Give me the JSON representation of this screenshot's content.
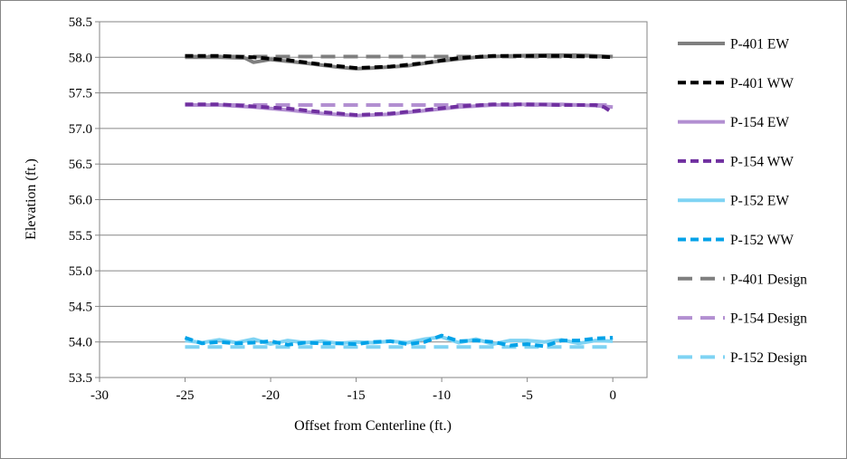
{
  "chart_data": {
    "type": "line",
    "title": "",
    "xlabel": "Offset from Centerline (ft.)",
    "ylabel": "Elevation (ft.)",
    "xlim": [
      -30,
      2
    ],
    "ylim": [
      53.5,
      58.5
    ],
    "xticks": [
      "-30",
      "-25",
      "-20",
      "-15",
      "-10",
      "-5",
      "0"
    ],
    "xtick_values": [
      -30,
      -25,
      -20,
      -15,
      -10,
      -5,
      0
    ],
    "yticks": [
      "53.5",
      "54.0",
      "54.5",
      "55.0",
      "55.5",
      "56.0",
      "56.5",
      "57.0",
      "57.5",
      "58.0",
      "58.5"
    ],
    "ytick_values": [
      53.5,
      54.0,
      54.5,
      55.0,
      55.5,
      56.0,
      56.5,
      57.0,
      57.5,
      58.0,
      58.5
    ],
    "grid": "horizontal major gridlines",
    "legend_placement": "right",
    "series": [
      {
        "name": "P-401 EW",
        "color": "#7f7f7f",
        "dash": "solid",
        "x": [
          -25,
          -23,
          -21.5,
          -21,
          -20,
          -18,
          -16,
          -15,
          -14,
          -12,
          -10,
          -8,
          -6,
          -4,
          -2,
          0
        ],
        "y": [
          58.0,
          58.0,
          57.99,
          57.93,
          57.97,
          57.92,
          57.86,
          57.84,
          57.85,
          57.88,
          57.95,
          58.0,
          58.02,
          58.03,
          58.03,
          58.01
        ]
      },
      {
        "name": "P-401 WW",
        "color": "#000000",
        "dash": "dash",
        "x": [
          -25,
          -23,
          -21,
          -19,
          -17,
          -15,
          -13,
          -11,
          -9,
          -7,
          -5,
          -3,
          -1,
          0
        ],
        "y": [
          58.02,
          58.02,
          58.0,
          57.96,
          57.9,
          57.85,
          57.87,
          57.92,
          57.99,
          58.02,
          58.02,
          58.02,
          58.01,
          58.0
        ]
      },
      {
        "name": "P-154 EW",
        "color": "#b28fd1",
        "dash": "solid",
        "x": [
          -25,
          -23,
          -21,
          -19,
          -17,
          -15,
          -13,
          -11,
          -9,
          -7,
          -5,
          -3,
          -1,
          0
        ],
        "y": [
          57.33,
          57.33,
          57.3,
          57.26,
          57.21,
          57.18,
          57.2,
          57.25,
          57.3,
          57.33,
          57.34,
          57.34,
          57.32,
          57.3
        ]
      },
      {
        "name": "P-154 WW",
        "color": "#7030a0",
        "dash": "dash",
        "x": [
          -25,
          -23,
          -21,
          -19,
          -17,
          -15,
          -13,
          -11,
          -9,
          -7,
          -5,
          -3,
          -1,
          -0.5,
          0
        ],
        "y": [
          57.34,
          57.34,
          57.31,
          57.28,
          57.23,
          57.19,
          57.21,
          57.26,
          57.31,
          57.34,
          57.34,
          57.33,
          57.33,
          57.3,
          57.22
        ]
      },
      {
        "name": "P-152 EW",
        "color": "#7fd3f3",
        "dash": "solid",
        "x": [
          -25,
          -24,
          -23,
          -22,
          -21,
          -20,
          -19,
          -18,
          -17,
          -16,
          -15,
          -14,
          -13,
          -12,
          -11,
          -10,
          -9,
          -8,
          -7,
          -6,
          -5,
          -4,
          -3,
          -2,
          -1,
          0
        ],
        "y": [
          54.02,
          53.99,
          54.03,
          53.99,
          54.04,
          53.97,
          54.02,
          53.99,
          54.01,
          53.98,
          54.0,
          53.99,
          54.01,
          53.99,
          54.04,
          54.07,
          53.99,
          54.04,
          53.97,
          54.02,
          54.02,
          54.0,
          54.03,
          53.98,
          54.02,
          54.01
        ]
      },
      {
        "name": "P-152 WW",
        "color": "#00a2e8",
        "dash": "dash",
        "x": [
          -25,
          -24,
          -23,
          -22,
          -21,
          -20,
          -19,
          -18,
          -17,
          -16,
          -15,
          -14,
          -13,
          -12,
          -11,
          -10,
          -9,
          -8,
          -7,
          -6,
          -5,
          -4,
          -3,
          -2,
          -1,
          0
        ],
        "y": [
          54.06,
          53.98,
          54.0,
          53.98,
          53.99,
          54.01,
          53.96,
          53.99,
          53.98,
          53.98,
          53.97,
          54.0,
          54.01,
          53.97,
          54.0,
          54.09,
          54.01,
          54.02,
          54.0,
          53.95,
          53.97,
          53.94,
          54.02,
          54.02,
          54.05,
          54.06
        ]
      },
      {
        "name": "P-401 Design",
        "color": "#7f7f7f",
        "dash": "longdash",
        "x": [
          -25,
          0
        ],
        "y": [
          58.01,
          58.01
        ]
      },
      {
        "name": "P-154 Design",
        "color": "#b28fd1",
        "dash": "longdash",
        "x": [
          -25,
          0
        ],
        "y": [
          57.33,
          57.33
        ]
      },
      {
        "name": "P-152 Design",
        "color": "#7fd3f3",
        "dash": "longdash",
        "x": [
          -25,
          0
        ],
        "y": [
          53.93,
          53.93
        ]
      }
    ]
  }
}
